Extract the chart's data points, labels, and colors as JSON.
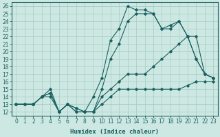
{
  "xlabel": "Humidex (Indice chaleur)",
  "background_color": "#cde8e2",
  "grid_color": "#aacfc8",
  "line_color": "#1a6060",
  "xlim": [
    -0.5,
    23.5
  ],
  "ylim": [
    11.5,
    26.5
  ],
  "x_ticks": [
    0,
    1,
    2,
    3,
    4,
    5,
    6,
    7,
    8,
    9,
    10,
    11,
    12,
    13,
    14,
    15,
    16,
    17,
    18,
    19,
    20,
    21,
    22,
    23
  ],
  "y_ticks": [
    12,
    13,
    14,
    15,
    16,
    17,
    18,
    19,
    20,
    21,
    22,
    23,
    24,
    25,
    26
  ],
  "line1_x": [
    0,
    1,
    2,
    3,
    4,
    5,
    6,
    7,
    8,
    9,
    10,
    11,
    12,
    13,
    14,
    15,
    16,
    17,
    18,
    19,
    20,
    21,
    22,
    23
  ],
  "line1_y": [
    13,
    13,
    13,
    14,
    14,
    12,
    13,
    12,
    12,
    12,
    13,
    14,
    15,
    15,
    15,
    15,
    15,
    15,
    15,
    15,
    15.5,
    16,
    16,
    16
  ],
  "line2_x": [
    0,
    1,
    2,
    3,
    4,
    5,
    6,
    7,
    8,
    9,
    10,
    11,
    12,
    13,
    14,
    15,
    16,
    17,
    18,
    19,
    20,
    21,
    22,
    23
  ],
  "line2_y": [
    13,
    13,
    13,
    14,
    14.5,
    12,
    13,
    12.5,
    12,
    12,
    14,
    15,
    16,
    17,
    17,
    17,
    18,
    19,
    20,
    21,
    22,
    22,
    17,
    16.5
  ],
  "line3_x": [
    0,
    1,
    2,
    3,
    4,
    5,
    6,
    7,
    8,
    9,
    10,
    11,
    12,
    13,
    14,
    15,
    16,
    17,
    18,
    19,
    20,
    21,
    22,
    23
  ],
  "line3_y": [
    13,
    13,
    13,
    14,
    14.5,
    12,
    13,
    12.5,
    12,
    12,
    15,
    19,
    21,
    24,
    25,
    25,
    25,
    23,
    23.5,
    24,
    22,
    19,
    17,
    16.5
  ],
  "line4_x": [
    0,
    1,
    2,
    3,
    4,
    5,
    6,
    7,
    8,
    9,
    10,
    11,
    12,
    13,
    14,
    15,
    16,
    17,
    18,
    19,
    20,
    21,
    22,
    23
  ],
  "line4_y": [
    13,
    13,
    13,
    14,
    15,
    12,
    13,
    12,
    12,
    14,
    16.5,
    21.5,
    23,
    26,
    25.5,
    25.5,
    25,
    23,
    23,
    24,
    22,
    19,
    17,
    16.5
  ]
}
